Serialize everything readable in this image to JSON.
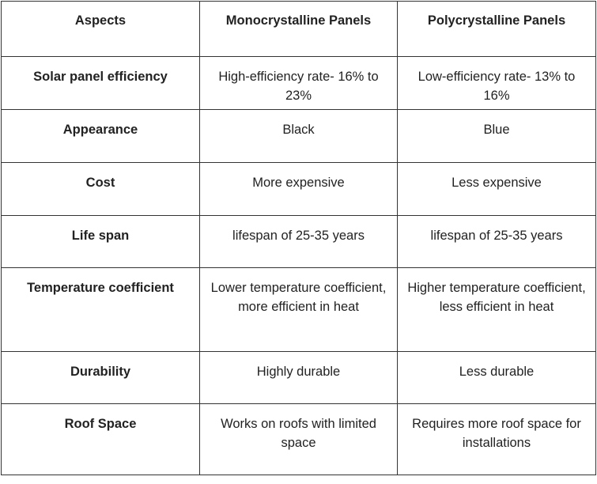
{
  "table": {
    "header": [
      "Aspects",
      "Monocrystalline Panels",
      "Polycrystalline Panels"
    ],
    "rows": [
      [
        "Solar panel efficiency",
        "High-efficiency rate- 16% to 23%",
        "Low-efficiency rate- 13% to 16%"
      ],
      [
        "Appearance",
        "Black",
        "Blue"
      ],
      [
        "Cost",
        "More expensive",
        "Less expensive"
      ],
      [
        "Life span",
        "lifespan of 25-35 years",
        "lifespan of 25-35 years"
      ],
      [
        "Temperature coefficient",
        "Lower temperature coefficient, more efficient in heat",
        "Higher temperature coefficient, less efficient in heat"
      ],
      [
        "Durability",
        "Highly durable",
        "Less durable"
      ],
      [
        "Roof Space",
        "Works on roofs with limited space",
        "Requires more roof space for installations"
      ]
    ]
  }
}
